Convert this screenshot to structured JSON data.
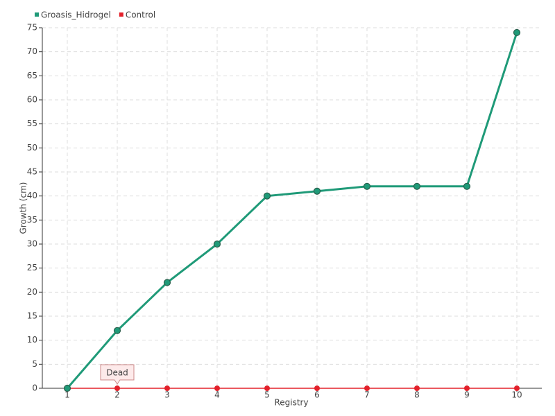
{
  "chart_data": {
    "type": "line",
    "x_label": "Registry",
    "y_label": "Growth (cm)",
    "x": [
      1,
      2,
      3,
      4,
      5,
      6,
      7,
      8,
      9,
      10
    ],
    "series": [
      {
        "name": "Groasis_Hidrogel",
        "color": "#1f9a78",
        "values": [
          0,
          12,
          22,
          30,
          40,
          41,
          42,
          42,
          42,
          74
        ]
      },
      {
        "name": "Control",
        "color": "#e3202a",
        "values": [
          0,
          0,
          0,
          0,
          0,
          0,
          0,
          0,
          0,
          0
        ]
      }
    ],
    "xlim": [
      0.5,
      10.5
    ],
    "xticks": [
      1,
      2,
      3,
      4,
      5,
      6,
      7,
      8,
      9,
      10
    ],
    "ylim": [
      0,
      75
    ],
    "yticks": [
      0,
      5,
      10,
      15,
      20,
      25,
      30,
      35,
      40,
      45,
      50,
      55,
      60,
      65,
      70,
      75
    ],
    "grid": true,
    "legend": "top-left",
    "annotations": [
      {
        "text": "Dead",
        "x": 2,
        "y": 0
      }
    ]
  }
}
